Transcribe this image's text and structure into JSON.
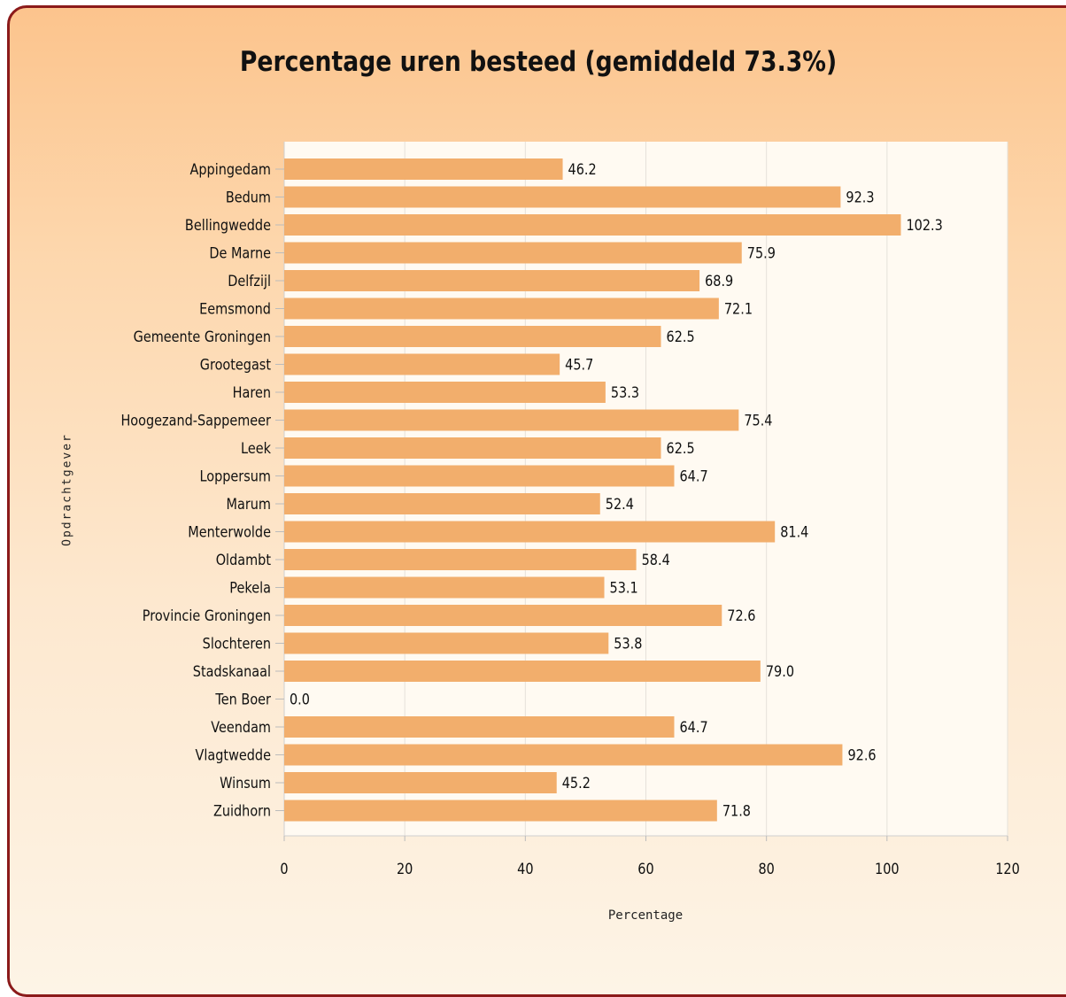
{
  "chart_data": {
    "type": "bar",
    "orientation": "horizontal",
    "title": "Percentage uren besteed (gemiddeld 73.3%)",
    "xlabel": "Percentage",
    "ylabel": "Opdrachtgever",
    "categories": [
      "Appingedam",
      "Bedum",
      "Bellingwedde",
      "De Marne",
      "Delfzijl",
      "Eemsmond",
      "Gemeente Groningen",
      "Grootegast",
      "Haren",
      "Hoogezand-Sappemeer",
      "Leek",
      "Loppersum",
      "Marum",
      "Menterwolde",
      "Oldambt",
      "Pekela",
      "Provincie Groningen",
      "Slochteren",
      "Stadskanaal",
      "Ten Boer",
      "Veendam",
      "Vlagtwedde",
      "Winsum",
      "Zuidhorn"
    ],
    "values": [
      46.2,
      92.3,
      102.3,
      75.9,
      68.9,
      72.1,
      62.5,
      45.7,
      53.3,
      75.4,
      62.5,
      64.7,
      52.4,
      81.4,
      58.4,
      53.1,
      72.6,
      53.8,
      79.0,
      0.0,
      64.7,
      92.6,
      45.2,
      71.8
    ],
    "value_labels": [
      "46.2",
      "92.3",
      "102.3",
      "75.9",
      "68.9",
      "72.1",
      "62.5",
      "45.7",
      "53.3",
      "75.4",
      "62.5",
      "64.7",
      "52.4",
      "81.4",
      "58.4",
      "53.1",
      "72.6",
      "53.8",
      "79.0",
      "0.0",
      "64.7",
      "92.6",
      "45.2",
      "71.8"
    ],
    "xlim": [
      0,
      120
    ],
    "xticks": [
      0,
      20,
      40,
      60,
      80,
      100,
      120
    ],
    "grid": true,
    "legend": "none",
    "colors": {
      "bar": "#f2ae6c",
      "plot_background": "#fffaf2",
      "grid": "#e6e1da",
      "frame": "#8b1a1a"
    }
  }
}
